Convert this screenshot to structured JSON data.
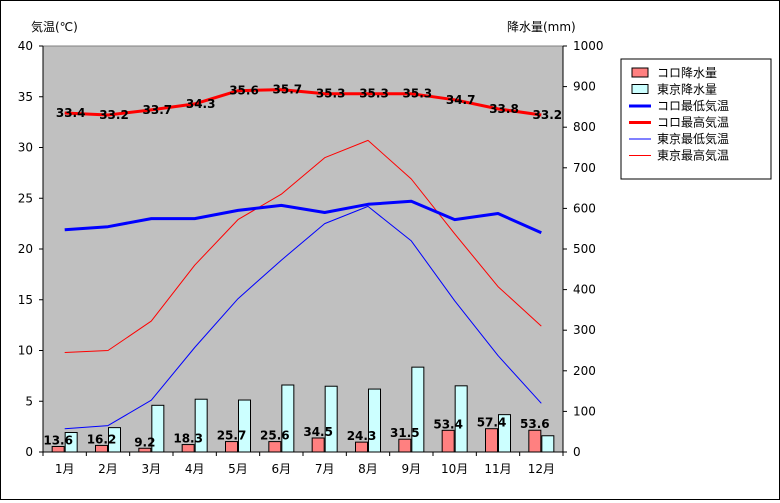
{
  "chart_data": {
    "type": "bar+line",
    "categories": [
      "1月",
      "2月",
      "3月",
      "4月",
      "5月",
      "6月",
      "7月",
      "8月",
      "9月",
      "10月",
      "11月",
      "12月"
    ],
    "y_left": {
      "label": "気温(℃)",
      "lim": [
        0,
        40
      ],
      "ticks": [
        0,
        5,
        10,
        15,
        20,
        25,
        30,
        35,
        40
      ]
    },
    "y_right": {
      "label": "降水量(mm)",
      "lim": [
        0,
        1000
      ],
      "ticks": [
        0,
        100,
        200,
        300,
        400,
        500,
        600,
        700,
        800,
        900,
        1000
      ]
    },
    "grid": false,
    "legend_position": "right",
    "bars": [
      {
        "name": "コロ降水量",
        "axis": "right",
        "color": "#ff8080",
        "values": [
          13.6,
          16.2,
          9.2,
          18.3,
          25.7,
          25.6,
          34.5,
          24.3,
          31.5,
          53.4,
          57.4,
          53.6
        ],
        "labels": [
          "13.6",
          "16.2",
          "9.2",
          "18.3",
          "25.7",
          "25.6",
          "34.5",
          "24.3",
          "31.5",
          "53.4",
          "57.4",
          "53.6"
        ]
      },
      {
        "name": "東京降水量",
        "axis": "right",
        "color": "#ccffff",
        "values": [
          48,
          60,
          115,
          130,
          128,
          165,
          162,
          155,
          209,
          163,
          92,
          40
        ]
      }
    ],
    "lines": [
      {
        "name": "コロ最低気温",
        "axis": "left",
        "color": "#0000ff",
        "width": "thick",
        "values": [
          21.9,
          22.2,
          23.0,
          23.0,
          23.8,
          24.3,
          23.6,
          24.4,
          24.7,
          22.9,
          23.5,
          21.6
        ]
      },
      {
        "name": "コロ最高気温",
        "axis": "left",
        "color": "#ff0000",
        "width": "thick",
        "values": [
          33.4,
          33.2,
          33.7,
          34.3,
          35.6,
          35.7,
          35.3,
          35.3,
          35.3,
          34.7,
          33.8,
          33.2
        ],
        "labels": [
          "33.4",
          "33.2",
          "33.7",
          "34.3",
          "35.6",
          "35.7",
          "35.3",
          "35.3",
          "35.3",
          "34.7",
          "33.8",
          "33.2"
        ]
      },
      {
        "name": "東京最低気温",
        "axis": "left",
        "color": "#0000ff",
        "width": "thin",
        "values": [
          2.3,
          2.6,
          5.1,
          10.3,
          15.1,
          18.9,
          22.5,
          24.2,
          20.8,
          14.9,
          9.5,
          4.8
        ]
      },
      {
        "name": "東京最高気温",
        "axis": "left",
        "color": "#ff0000",
        "width": "thin",
        "values": [
          9.8,
          10.0,
          12.9,
          18.4,
          22.9,
          25.4,
          29.0,
          30.7,
          26.9,
          21.5,
          16.3,
          12.4
        ]
      }
    ]
  }
}
